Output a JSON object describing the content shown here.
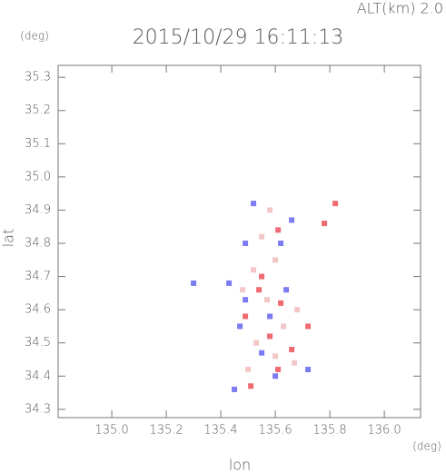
{
  "chart_data": {
    "type": "scatter",
    "title": "2015/10/29 16:11:13",
    "subtitle": "ALT(km) 2.0",
    "x_label": "lon",
    "x_unit": "(deg)",
    "y_label": "lat",
    "y_unit": "(deg)",
    "xlim": [
      134.803,
      136.133
    ],
    "ylim": [
      34.275,
      35.336
    ],
    "xticks": [
      {
        "value": 135.0,
        "label": "135.0"
      },
      135.2,
      135.4,
      135.6,
      135.8,
      {
        "value": 136.0,
        "label": "136.0"
      }
    ],
    "yticks": [
      34.3,
      34.4,
      34.5,
      34.6,
      34.7,
      34.8,
      34.9,
      {
        "value": 35.0,
        "label": "35.0"
      },
      35.1,
      35.2,
      35.3
    ],
    "series": [
      {
        "color": "#7b7bf2",
        "x": [
          135.52,
          135.49,
          135.62,
          135.66,
          135.43,
          135.49,
          135.58,
          135.47,
          135.55,
          135.6,
          135.72,
          135.45,
          135.64,
          135.3
        ],
        "y": [
          34.92,
          34.8,
          34.8,
          34.87,
          34.68,
          34.63,
          34.58,
          34.55,
          34.47,
          34.4,
          34.42,
          34.36,
          34.66,
          34.68
        ]
      },
      {
        "color": "#f06a72",
        "x": [
          135.82,
          135.61,
          135.54,
          135.62,
          135.49,
          135.58,
          135.66,
          135.61,
          135.51,
          135.72,
          135.78,
          135.55
        ],
        "y": [
          34.92,
          34.84,
          34.66,
          34.62,
          34.58,
          34.52,
          34.48,
          34.42,
          34.37,
          34.55,
          34.86,
          34.7
        ]
      },
      {
        "color": "#f3c6c8",
        "x": [
          135.55,
          135.6,
          135.52,
          135.57,
          135.63,
          135.53,
          135.6,
          135.67,
          135.5,
          135.48,
          135.68,
          135.58
        ],
        "y": [
          34.82,
          34.75,
          34.72,
          34.63,
          34.55,
          34.5,
          34.46,
          34.44,
          34.42,
          34.66,
          34.6,
          34.9
        ]
      }
    ]
  }
}
